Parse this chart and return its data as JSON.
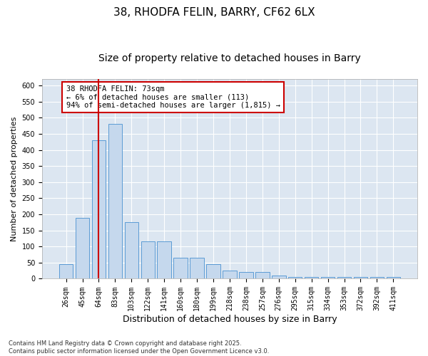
{
  "title": "38, RHODFA FELIN, BARRY, CF62 6LX",
  "subtitle": "Size of property relative to detached houses in Barry",
  "xlabel": "Distribution of detached houses by size in Barry",
  "ylabel": "Number of detached properties",
  "categories": [
    "26sqm",
    "45sqm",
    "64sqm",
    "83sqm",
    "103sqm",
    "122sqm",
    "141sqm",
    "160sqm",
    "180sqm",
    "199sqm",
    "218sqm",
    "238sqm",
    "257sqm",
    "276sqm",
    "295sqm",
    "315sqm",
    "334sqm",
    "353sqm",
    "372sqm",
    "392sqm",
    "411sqm"
  ],
  "values": [
    45,
    190,
    430,
    480,
    175,
    115,
    115,
    65,
    65,
    45,
    25,
    20,
    20,
    10,
    5,
    5,
    5,
    5,
    5,
    5,
    5
  ],
  "bar_color": "#c5d8ed",
  "bar_edge_color": "#5b9bd5",
  "red_line_x": 2.0,
  "annotation_text": "38 RHODFA FELIN: 73sqm\n← 6% of detached houses are smaller (113)\n94% of semi-detached houses are larger (1,815) →",
  "annotation_box_color": "#ffffff",
  "annotation_border_color": "#cc0000",
  "ylim": [
    0,
    620
  ],
  "yticks": [
    0,
    50,
    100,
    150,
    200,
    250,
    300,
    350,
    400,
    450,
    500,
    550,
    600
  ],
  "plot_background_color": "#dce6f1",
  "footer": "Contains HM Land Registry data © Crown copyright and database right 2025.\nContains public sector information licensed under the Open Government Licence v3.0.",
  "title_fontsize": 11,
  "subtitle_fontsize": 10,
  "xlabel_fontsize": 9,
  "ylabel_fontsize": 8,
  "tick_fontsize": 7,
  "annotation_fontsize": 7.5,
  "footer_fontsize": 6
}
